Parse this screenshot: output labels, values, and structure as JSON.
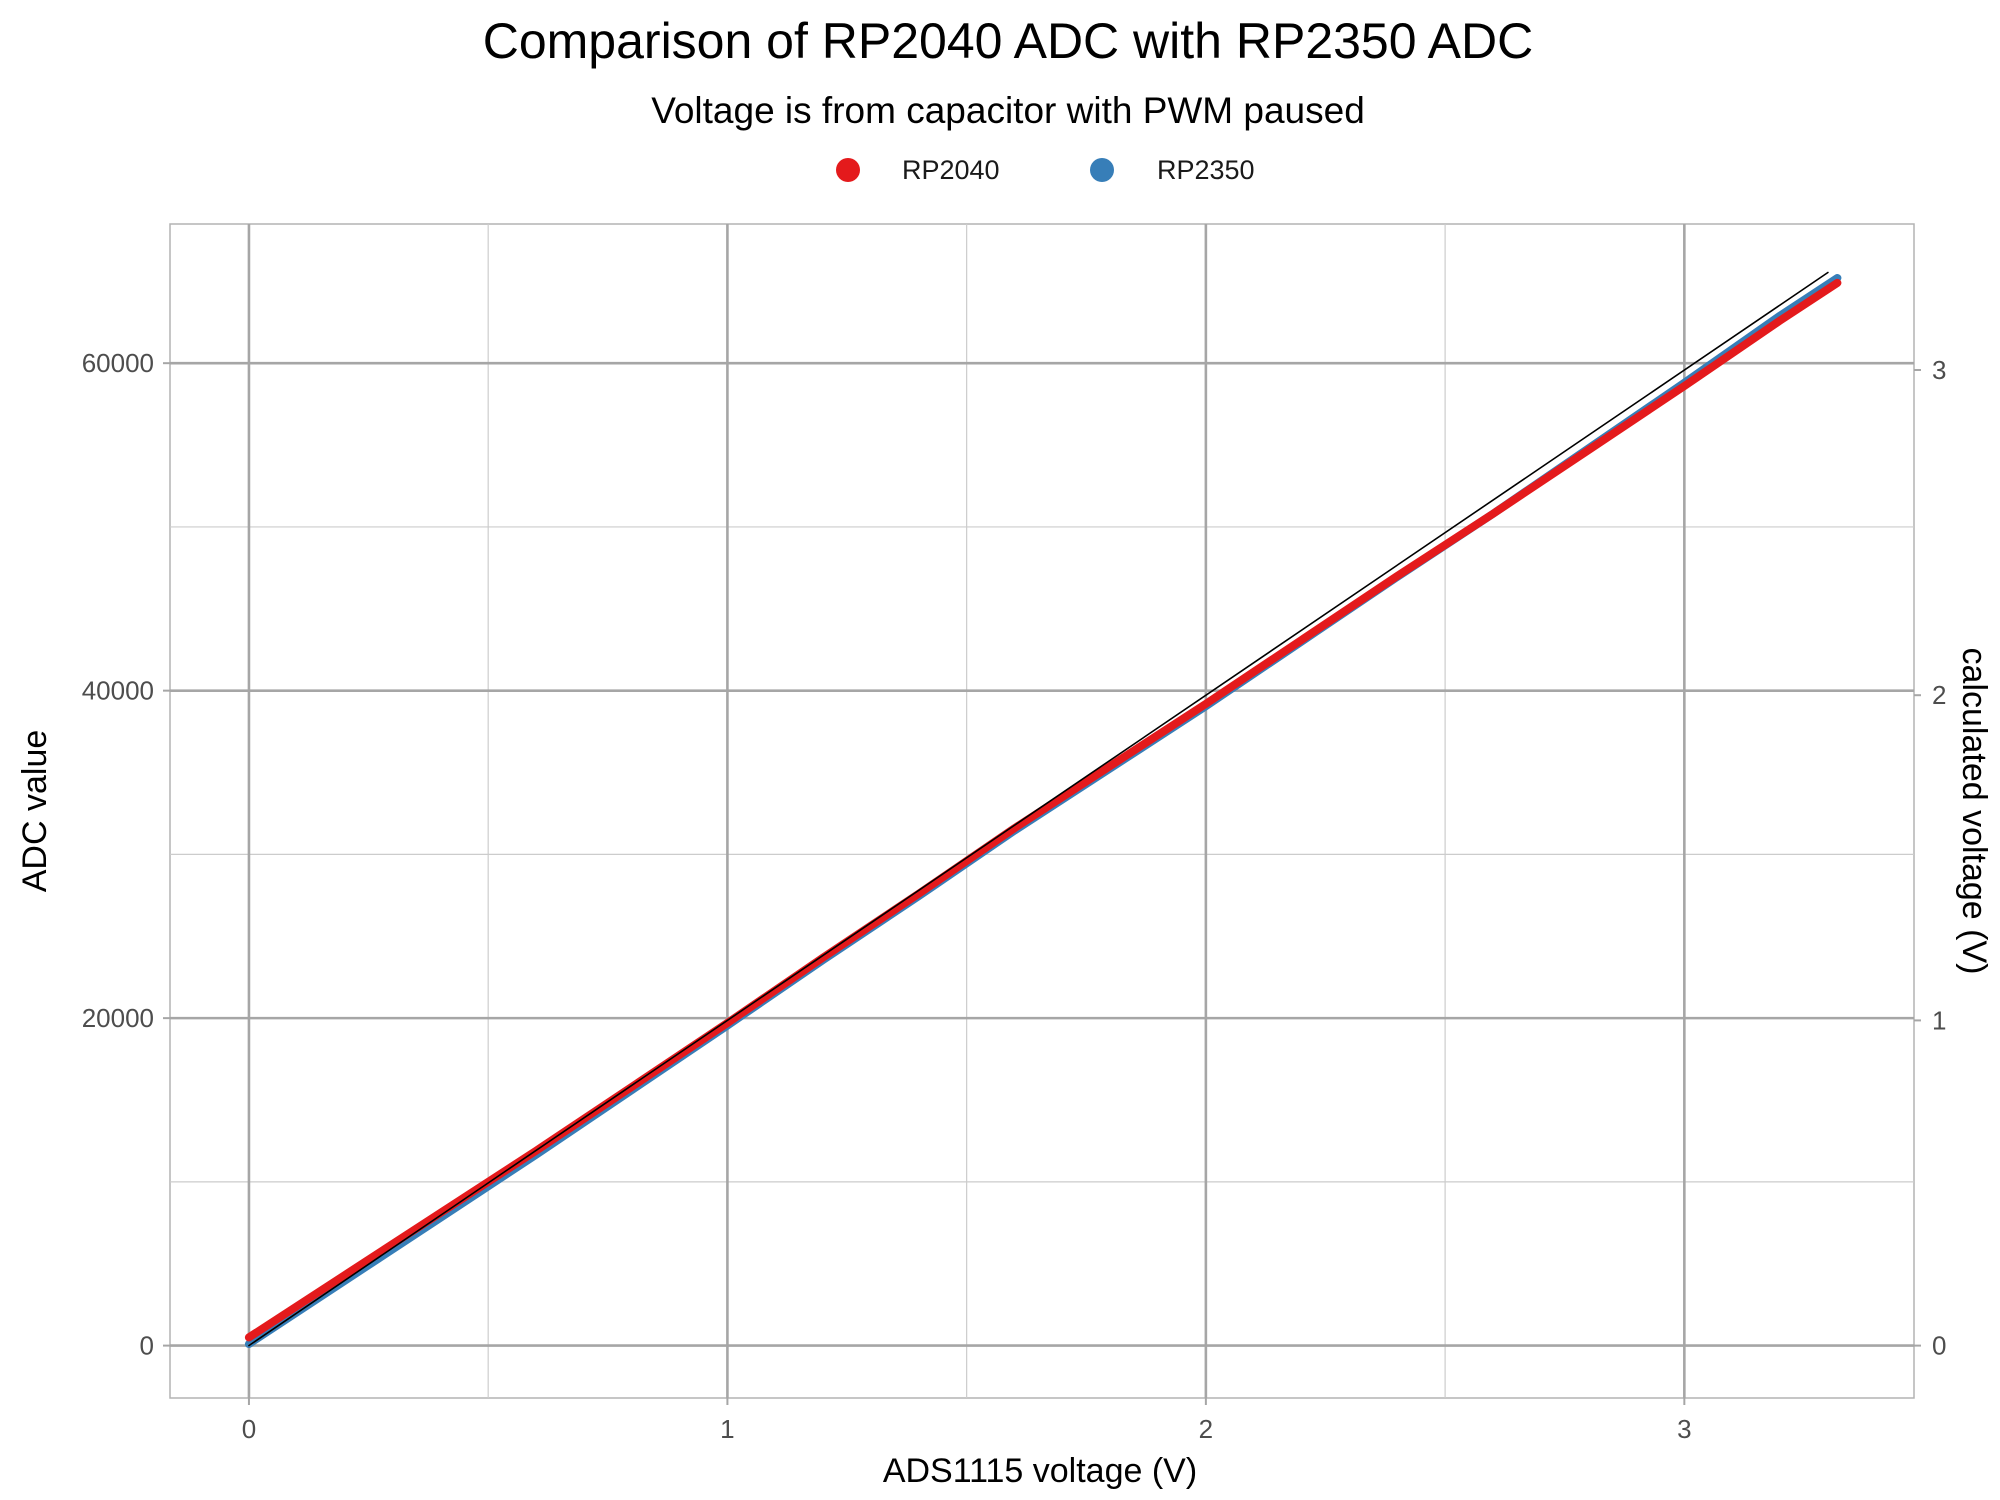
{
  "chart_data": {
    "type": "line",
    "title": "Comparison of RP2040 ADC with RP2350 ADC",
    "subtitle": "Voltage is from capacitor with PWM paused",
    "xlabel": "ADS1115 voltage (V)",
    "ylabel": "ADC value",
    "y2label": "calculated voltage (V)",
    "xlim": [
      -0.165,
      3.48
    ],
    "ylim": [
      -3200,
      68500
    ],
    "y2_scale": 5.035e-05,
    "x_ticks": [
      0,
      1,
      2,
      3
    ],
    "x_tick_labels": [
      "0",
      "1",
      "2",
      "3"
    ],
    "y_ticks": [
      0,
      20000,
      40000,
      60000
    ],
    "y_tick_labels": [
      "0",
      "20000",
      "40000",
      "60000"
    ],
    "y2_ticks": [
      0,
      1,
      2,
      3
    ],
    "y2_tick_labels": [
      "0",
      "1",
      "2",
      "3"
    ],
    "grid": true,
    "legend_position": "top",
    "series": [
      {
        "name": "RP2040",
        "color": "#e41a1c",
        "x": [
          0.0,
          0.2,
          0.4,
          0.6,
          0.8,
          1.0,
          1.2,
          1.4,
          1.6,
          1.8,
          2.0,
          2.2,
          2.4,
          2.6,
          2.8,
          3.0,
          3.2,
          3.32
        ],
        "values": [
          500,
          4300,
          8100,
          11900,
          15800,
          19700,
          23700,
          27600,
          31600,
          35400,
          39200,
          43100,
          47000,
          50800,
          54700,
          58600,
          62600,
          64900
        ]
      },
      {
        "name": "RP2350",
        "color": "#377eb8",
        "x": [
          0.0,
          0.2,
          0.4,
          0.6,
          0.8,
          1.0,
          1.2,
          1.4,
          1.6,
          1.8,
          2.0,
          2.2,
          2.4,
          2.6,
          2.8,
          3.0,
          3.2,
          3.32
        ],
        "values": [
          100,
          3950,
          7800,
          11650,
          15600,
          19550,
          23550,
          27450,
          31450,
          35250,
          39050,
          43000,
          46950,
          50800,
          54800,
          58800,
          62900,
          65200
        ]
      },
      {
        "name": "",
        "color": "#000000",
        "x": [
          0.0,
          3.3
        ],
        "values": [
          0,
          65536
        ]
      }
    ]
  }
}
